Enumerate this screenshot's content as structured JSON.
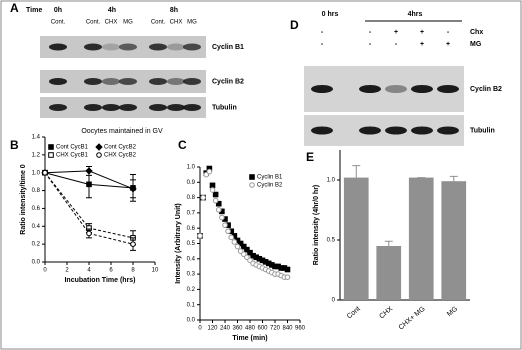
{
  "panel_letters": [
    "A",
    "B",
    "C",
    "D",
    "E"
  ],
  "blot_A": {
    "time_label": "Time",
    "timepoints": [
      "0h",
      "4h",
      "8h"
    ],
    "lanes": [
      "Cont.",
      "Cont.",
      "CHX",
      "MG",
      "Cont.",
      "CHX",
      "MG"
    ],
    "rows": [
      "Cyclin B1",
      "Cyclin B2",
      "Tubulin"
    ],
    "caption": "Oocytes maintained in GV"
  },
  "blot_D": {
    "timepoints": [
      "0 hrs",
      "4hrs"
    ],
    "treatments": [
      {
        "name": "Chx",
        "signs": [
          "-",
          "-",
          "+",
          "+",
          "-"
        ]
      },
      {
        "name": "MG",
        "signs": [
          "-",
          "-",
          "-",
          "+",
          "+"
        ]
      }
    ],
    "rows": [
      "Cyclin B2",
      "Tubulin"
    ]
  },
  "chart_data": [
    {
      "type": "line",
      "x_label": "Incubation Time (hrs)",
      "y_label": "Ratio intensity/time 0",
      "x": [
        0,
        4,
        8
      ],
      "xlim": [
        0,
        10
      ],
      "xticks": [
        0,
        2,
        4,
        6,
        8,
        10
      ],
      "ylim": [
        0,
        1.4
      ],
      "yticks": [
        {
          "value": 0,
          "label": "0.0"
        },
        0.2,
        0.4,
        0.6,
        0.8,
        {
          "value": 1,
          "label": "1.0"
        },
        1.2,
        1.4
      ],
      "legend": "upper right",
      "series": [
        {
          "name": "Cont CycB1",
          "color": "#000000",
          "marker": "square",
          "dash": false,
          "values": [
            1.0,
            0.87,
            0.83
          ],
          "errors": [
            0,
            0.15,
            0.15
          ]
        },
        {
          "name": "Cont CycB2",
          "color": "#000000",
          "marker": "diamond",
          "dash": false,
          "values": [
            1.0,
            1.02,
            0.82
          ],
          "errors": [
            0,
            0.05,
            0.1
          ]
        },
        {
          "name": "CHX CycB1",
          "color": "#000000",
          "marker": "square-open",
          "dash": true,
          "values": [
            1.0,
            0.38,
            0.27
          ],
          "errors": [
            0,
            0.05,
            0.08
          ]
        },
        {
          "name": "CHX CycB2",
          "color": "#000000",
          "marker": "circle-open",
          "dash": true,
          "values": [
            1.0,
            0.32,
            0.2
          ],
          "errors": [
            0,
            0.05,
            0.07
          ]
        }
      ]
    },
    {
      "type": "scatter",
      "x_label": "Time (min)",
      "y_label": "Intensity (Arbitrary Unit)",
      "x": [
        0,
        30,
        60,
        90,
        120,
        150,
        180,
        210,
        240,
        270,
        300,
        330,
        360,
        390,
        420,
        450,
        480,
        510,
        540,
        570,
        600,
        630,
        660,
        690,
        720,
        750,
        780,
        810,
        840
      ],
      "xlim": [
        0,
        960
      ],
      "xticks": [
        0,
        120,
        240,
        360,
        480,
        600,
        720,
        840,
        960
      ],
      "ylim": [
        0,
        1
      ],
      "yticks": [
        {
          "value": 0,
          "label": "0.0"
        },
        0.1,
        0.2,
        0.3,
        0.4,
        0.5,
        0.6,
        0.7,
        0.8,
        0.9,
        {
          "value": 1,
          "label": "1.0"
        }
      ],
      "legend": "upper right",
      "series": [
        {
          "name": "Cyclin B1",
          "color": "#000000",
          "marker": "square",
          "values": [
            0.55,
            0.8,
            0.96,
            0.99,
            0.88,
            0.82,
            0.76,
            0.71,
            0.66,
            0.62,
            0.58,
            0.55,
            0.52,
            0.5,
            0.48,
            0.46,
            0.44,
            0.42,
            0.41,
            0.4,
            0.39,
            0.38,
            0.37,
            0.36,
            0.35,
            0.35,
            0.34,
            0.34,
            0.33
          ]
        },
        {
          "name": "Cyclin B2",
          "color": "#999999",
          "marker": "circle-open",
          "values": [
            0.55,
            0.8,
            0.95,
            0.97,
            0.85,
            0.78,
            0.72,
            0.67,
            0.62,
            0.58,
            0.54,
            0.51,
            0.48,
            0.45,
            0.43,
            0.41,
            0.39,
            0.37,
            0.36,
            0.35,
            0.34,
            0.33,
            0.32,
            0.31,
            0.3,
            0.3,
            0.29,
            0.28,
            0.28
          ]
        }
      ]
    },
    {
      "type": "bar",
      "y_label": "Ratio intensity (4hr/0 hr)",
      "categories": [
        "Cont",
        "CHX",
        "CHX+ MG",
        "MG"
      ],
      "values": [
        1.02,
        0.45,
        1.02,
        0.99
      ],
      "errors": [
        0.1,
        0.04,
        0,
        0.04
      ],
      "color": "#909090",
      "ylim": [
        0,
        1.25
      ],
      "yticks": [
        0,
        0.5,
        {
          "value": 1,
          "label": "1.0"
        }
      ]
    }
  ]
}
